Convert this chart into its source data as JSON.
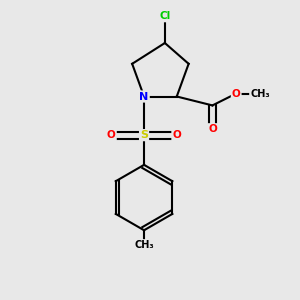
{
  "bg_color": "#e8e8e8",
  "atom_colors": {
    "C": "#000000",
    "N": "#0000ff",
    "O": "#ff0000",
    "S": "#cccc00",
    "Cl": "#00cc00",
    "H": "#000000"
  },
  "bond_color": "#000000",
  "bond_width": 1.5,
  "title": ""
}
